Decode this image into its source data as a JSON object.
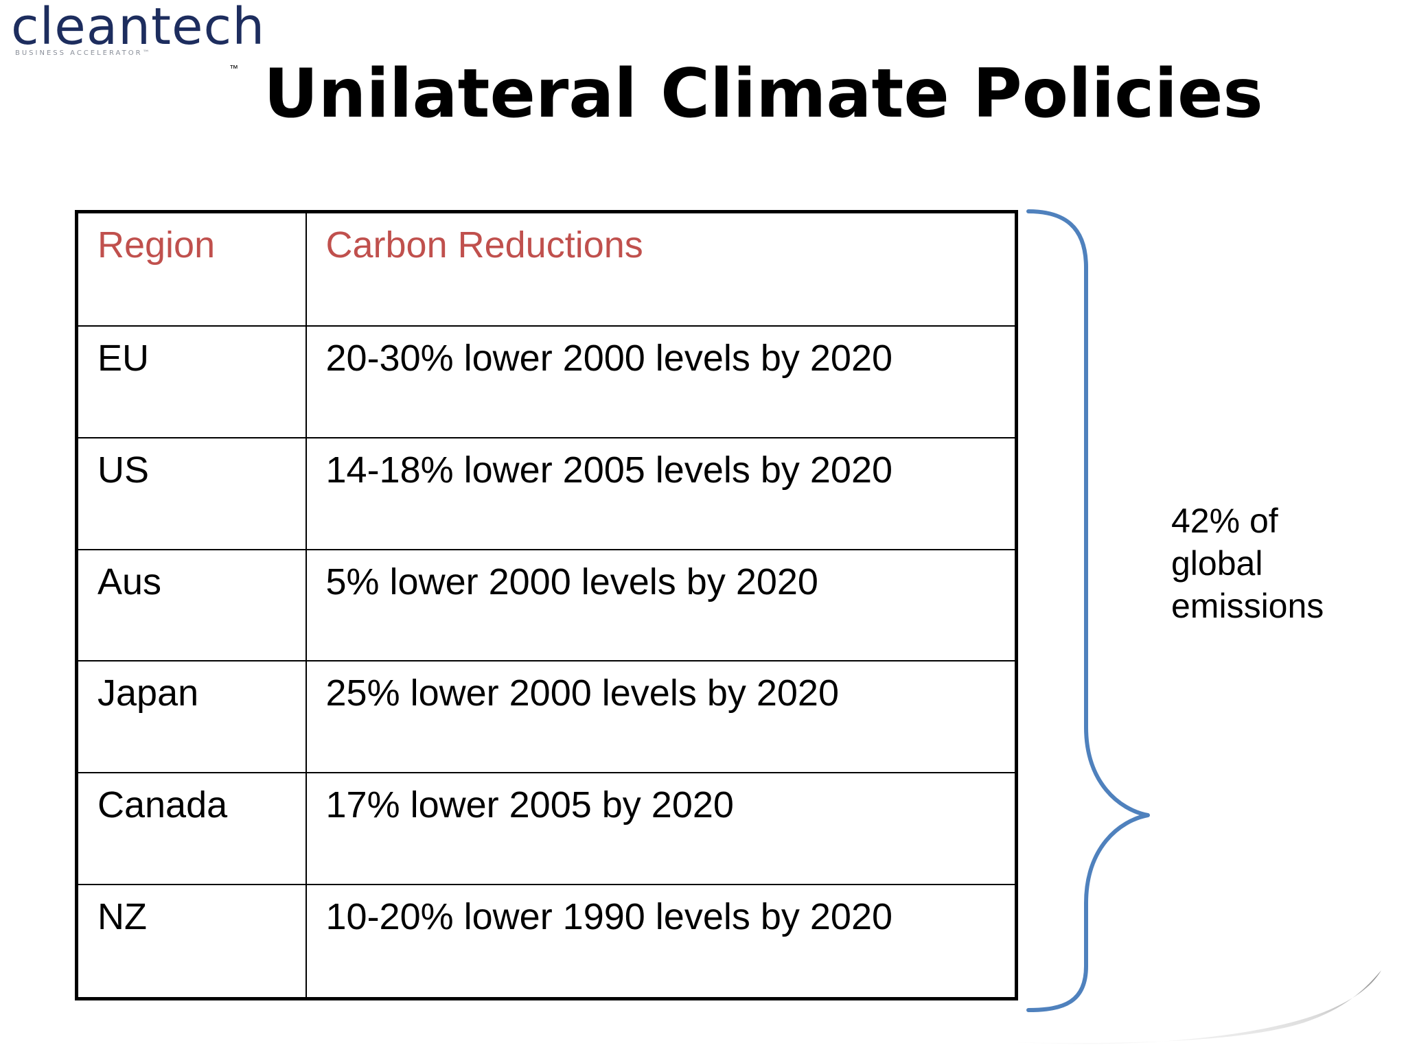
{
  "logo": {
    "wordmark": "cleantech",
    "tagline": "BUSINESS ACCELERATOR™",
    "trademark": "™",
    "color": "#1d2d5e"
  },
  "title": "Unilateral Climate Policies",
  "table": {
    "headers": [
      "Region",
      "Carbon Reductions"
    ],
    "header_color": "#c0504d",
    "rows": [
      [
        "EU",
        "20-30% lower 2000 levels by 2020"
      ],
      [
        "US",
        "14-18% lower 2005 levels by 2020"
      ],
      [
        "Aus",
        "5% lower 2000 levels by 2020"
      ],
      [
        "Japan",
        "25% lower 2000 levels by 2020"
      ],
      [
        "Canada",
        "17% lower 2005 by 2020"
      ],
      [
        "NZ",
        "10-20% lower 1990 levels by 2020"
      ]
    ]
  },
  "brace": {
    "color": "#4f81bd",
    "label_lines": [
      "42% of",
      "global",
      "emissions"
    ]
  }
}
